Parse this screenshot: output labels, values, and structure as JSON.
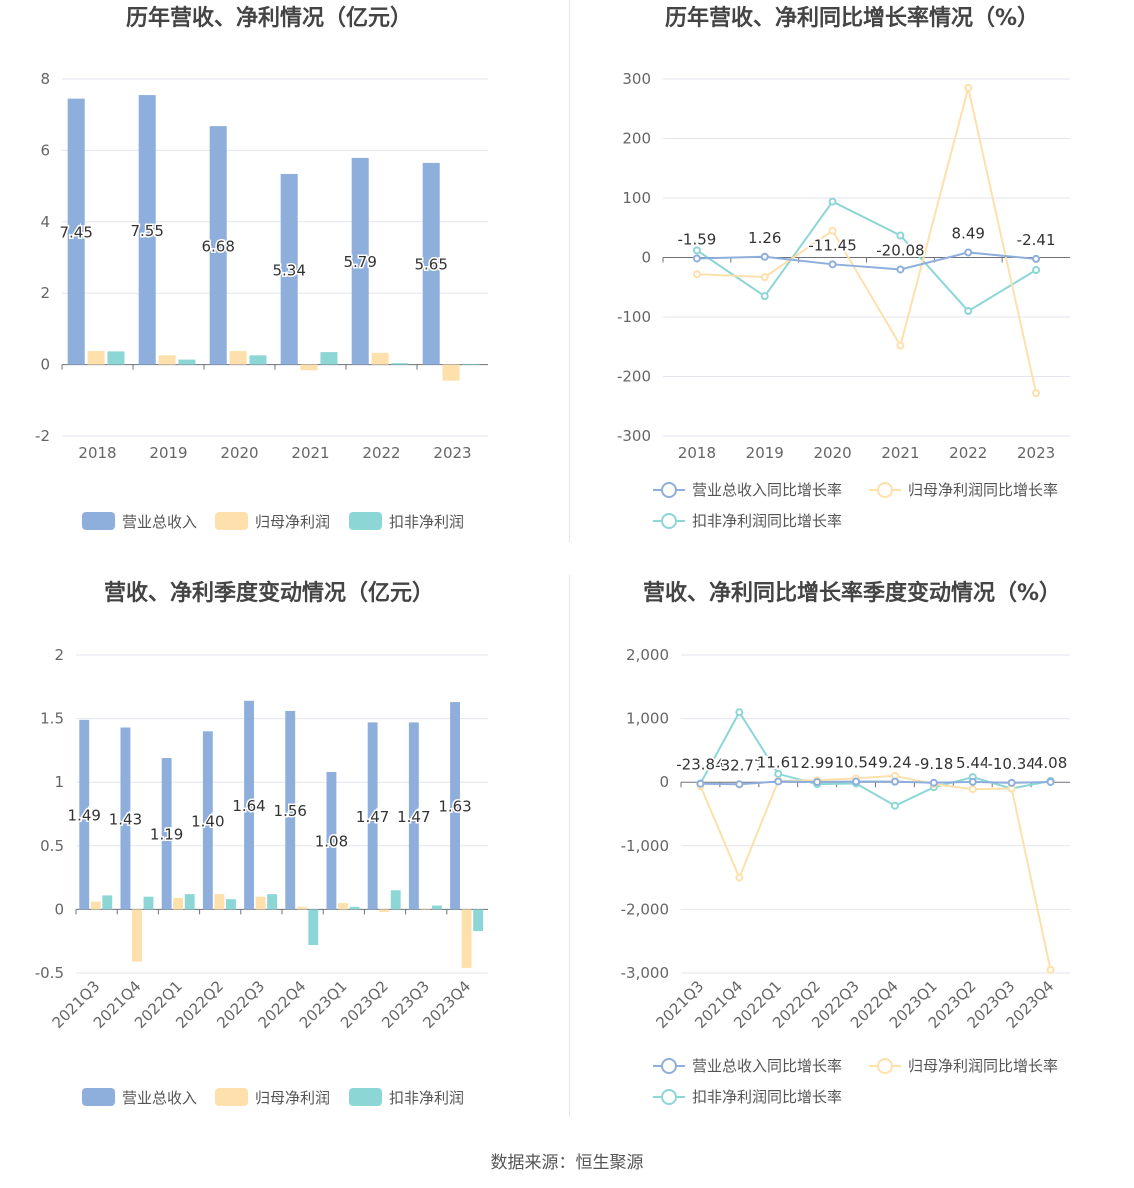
{
  "colors": {
    "revenue": "#8eaedc",
    "net_profit": "#fde0ab",
    "deducted_profit": "#8dd6d6",
    "revenue_line": "#8eaedc",
    "net_line": "#fde0ab",
    "deducted_line": "#8dd6d6"
  },
  "source_text": "数据来源：恒生聚源",
  "chart_data": [
    {
      "id": "annual-bar",
      "type": "bar",
      "title": "历年营收、净利情况（亿元）",
      "categories": [
        "2018",
        "2019",
        "2020",
        "2021",
        "2022",
        "2023"
      ],
      "ylim": [
        -2,
        8
      ],
      "yticks": [
        -2,
        0,
        2,
        4,
        6,
        8
      ],
      "series": [
        {
          "name": "营业总收入",
          "values": [
            7.45,
            7.55,
            6.68,
            5.34,
            5.79,
            5.65
          ],
          "labeled": true
        },
        {
          "name": "归母净利润",
          "values": [
            0.38,
            0.26,
            0.38,
            -0.16,
            0.33,
            -0.45
          ]
        },
        {
          "name": "扣非净利润",
          "values": [
            0.37,
            0.14,
            0.26,
            0.35,
            0.04,
            0.02
          ]
        }
      ],
      "labels": [
        "7.45",
        "7.55",
        "6.68",
        "5.34",
        "5.79",
        "5.65"
      ],
      "legend": "bottom",
      "grid": true
    },
    {
      "id": "annual-line",
      "type": "line",
      "title": "历年营收、净利同比增长率情况（%）",
      "categories": [
        "2018",
        "2019",
        "2020",
        "2021",
        "2022",
        "2023"
      ],
      "ylim": [
        -300,
        300
      ],
      "yticks": [
        -300,
        -200,
        -100,
        0,
        100,
        200,
        300
      ],
      "series": [
        {
          "name": "营业总收入同比增长率",
          "values": [
            -1.59,
            1.26,
            -11.45,
            -20.08,
            8.49,
            -2.41
          ],
          "labeled": true
        },
        {
          "name": "归母净利润同比增长率",
          "values": [
            -28,
            -33,
            45,
            -148,
            285,
            -228
          ]
        },
        {
          "name": "扣非净利润同比增长率",
          "values": [
            12,
            -65,
            94,
            37,
            -90,
            -21
          ]
        }
      ],
      "labels": [
        "-1.59",
        "1.26",
        "-11.45",
        "-20.08",
        "8.49",
        "-2.41"
      ],
      "legend": "bottom",
      "grid": true
    },
    {
      "id": "quarter-bar",
      "type": "bar",
      "title": "营收、净利季度变动情况（亿元）",
      "categories": [
        "2021Q3",
        "2021Q4",
        "2022Q1",
        "2022Q2",
        "2022Q3",
        "2022Q4",
        "2023Q1",
        "2023Q2",
        "2023Q3",
        "2023Q4"
      ],
      "ylim": [
        -0.5,
        2
      ],
      "yticks": [
        -0.5,
        0,
        0.5,
        1,
        1.5,
        2
      ],
      "series": [
        {
          "name": "营业总收入",
          "values": [
            1.49,
            1.43,
            1.19,
            1.4,
            1.64,
            1.56,
            1.08,
            1.47,
            1.47,
            1.63
          ],
          "labeled": true
        },
        {
          "name": "归母净利润",
          "values": [
            0.06,
            -0.41,
            0.09,
            0.12,
            0.1,
            0.02,
            0.05,
            -0.02,
            0.0,
            -0.46
          ]
        },
        {
          "name": "扣非净利润",
          "values": [
            0.11,
            0.1,
            0.12,
            0.08,
            0.12,
            -0.28,
            0.02,
            0.15,
            0.03,
            -0.17
          ]
        }
      ],
      "labels": [
        "1.49",
        "1.43",
        "1.19",
        "1.40",
        "1.64",
        "1.56",
        "1.08",
        "1.47",
        "1.47",
        "1.63"
      ],
      "legend": "bottom",
      "grid": true
    },
    {
      "id": "quarter-line",
      "type": "line",
      "title": "营收、净利同比增长率季度变动情况（%）",
      "categories": [
        "2021Q3",
        "2021Q4",
        "2022Q1",
        "2022Q2",
        "2022Q3",
        "2022Q4",
        "2023Q1",
        "2023Q2",
        "2023Q3",
        "2023Q4"
      ],
      "ylim": [
        -3000,
        2000
      ],
      "yticks": [
        -3000,
        -2000,
        -1000,
        0,
        1000,
        2000
      ],
      "series": [
        {
          "name": "营业总收入同比增长率",
          "values": [
            -23.84,
            -32.77,
            11.61,
            2.99,
            10.54,
            9.24,
            -9.18,
            5.44,
            -10.34,
            4.08
          ],
          "labeled": true
        },
        {
          "name": "归母净利润同比增长率",
          "values": [
            -60,
            -1500,
            20,
            30,
            60,
            100,
            -30,
            -110,
            -100,
            -2950
          ]
        },
        {
          "name": "扣非净利润同比增长率",
          "values": [
            -20,
            1100,
            130,
            -30,
            -20,
            -370,
            -80,
            80,
            -100,
            20
          ]
        }
      ],
      "labels": [
        "-23.84",
        "-32.77",
        "11.61",
        "2.99",
        "10.54",
        "9.24",
        "-9.18",
        "5.44",
        "-10.34",
        "4.08"
      ],
      "legend": "bottom",
      "grid": true
    }
  ]
}
